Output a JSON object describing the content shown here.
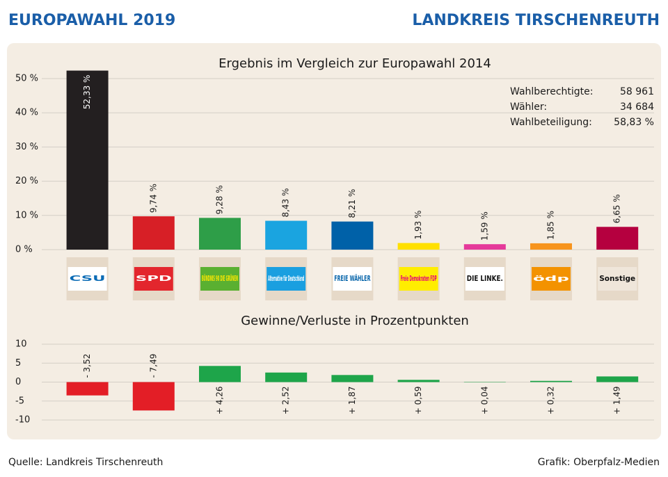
{
  "header": {
    "left": "EUROPAWAHL 2019",
    "right": "LANDKREIS TIRSCHENREUTH"
  },
  "footer": {
    "source": "Quelle: Landkreis Tirschenreuth",
    "credit": "Grafik: Oberpfalz-Medien"
  },
  "stats": [
    {
      "label": "Wahlberechtigte:",
      "value": "58 961"
    },
    {
      "label": "Wähler:",
      "value": "34 684"
    },
    {
      "label": "Wahlbeteiligung:",
      "value": "58,83 %"
    }
  ],
  "chart_data": [
    {
      "type": "bar",
      "title": "Ergebnis im Vergleich zur Europawahl 2014",
      "categories": [
        "CSU",
        "SPD",
        "BÜNDNIS 90 DIE GRÜNEN",
        "Alternative für Deutschland",
        "FREIE WÄHLER",
        "Freie Demokraten FDP",
        "DIE LINKE.",
        "ödp",
        "Sonstige"
      ],
      "values": [
        52.33,
        9.74,
        9.28,
        8.43,
        8.21,
        1.93,
        1.59,
        1.85,
        6.65
      ],
      "value_labels": [
        "52,33 %",
        "9,74 %",
        "9,28 %",
        "8,43 %",
        "8,21 %",
        "1,93 %",
        "1,59 %",
        "1,85 %",
        "6,65 %"
      ],
      "colors": [
        "#231f20",
        "#d71f26",
        "#2e9e48",
        "#1aa4e0",
        "#0061a8",
        "#ffe000",
        "#e5399a",
        "#f7941d",
        "#b5003f"
      ],
      "logo_colors": [
        "#ffffff",
        "#e3262d",
        "#5ab031",
        "#1a9fe0",
        "#ffffff",
        "#ffed00",
        "#ffffff",
        "#f39200",
        "#efe6da"
      ],
      "logo_text_colors": [
        "#0a6bb5",
        "#ffffff",
        "#ffe800",
        "#ffffff",
        "#0061a8",
        "#e5007d",
        "#111111",
        "#ffffff",
        "#111111"
      ],
      "ylim": [
        0,
        50
      ],
      "yticks": [
        {
          "value": 0,
          "label": "0 %"
        },
        {
          "value": 10,
          "label": "10 %"
        },
        {
          "value": 20,
          "label": "20 %"
        },
        {
          "value": 30,
          "label": "30 %"
        },
        {
          "value": 40,
          "label": "40 %"
        },
        {
          "value": 50,
          "label": "50 %"
        }
      ],
      "grid": true
    },
    {
      "type": "bar",
      "title": "Gewinne/Verluste in Prozentpunkten",
      "values": [
        -3.52,
        -7.49,
        4.26,
        2.52,
        1.87,
        0.59,
        0.04,
        0.32,
        1.49
      ],
      "value_labels": [
        "- 3,52",
        "- 7,49",
        "+ 4,26",
        "+ 2,52",
        "+ 1,87",
        "+ 0,59",
        "+ 0,04",
        "+ 0,32",
        "+ 1,49"
      ],
      "positive_color": "#1ea54a",
      "negative_color": "#e31e26",
      "ylim": [
        -10,
        10
      ],
      "yticks": [
        -10,
        -5,
        0,
        5,
        10
      ],
      "grid": true
    }
  ]
}
